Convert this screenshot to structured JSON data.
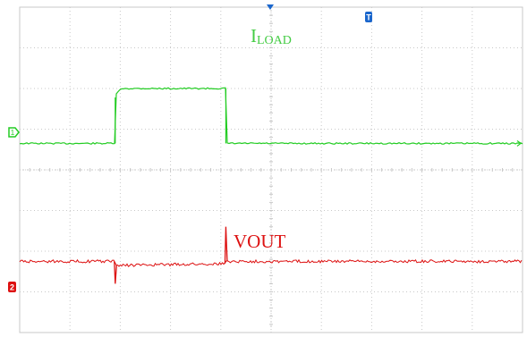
{
  "chart_data": {
    "type": "line",
    "grid": true,
    "x_divisions": 10,
    "y_divisions": 8,
    "annotations": {
      "load_label_main": "I",
      "load_label_sub": "LOAD",
      "vout_label": "VOUT"
    },
    "markers": {
      "trigger_marker": "T",
      "ch1_marker": "1",
      "ch2_marker": "2"
    },
    "series": [
      {
        "name": "ILOAD",
        "color": "#22cc22",
        "x_step_up": 1.9,
        "x_step_down": 4.1,
        "low_div": 3.35,
        "high_div": 2.0
      },
      {
        "name": "VOUT",
        "color": "#dd1111",
        "baseline_div": 6.25,
        "after_up_div": 6.35,
        "after_down_div": 6.25,
        "undershoot_at": 1.9,
        "undershoot_div": 6.8,
        "overshoot_at": 4.1,
        "overshoot_div": 5.4
      }
    ],
    "colors": {
      "grid": "#c8c8c8",
      "trigger_marker": "#1a66cc"
    }
  }
}
